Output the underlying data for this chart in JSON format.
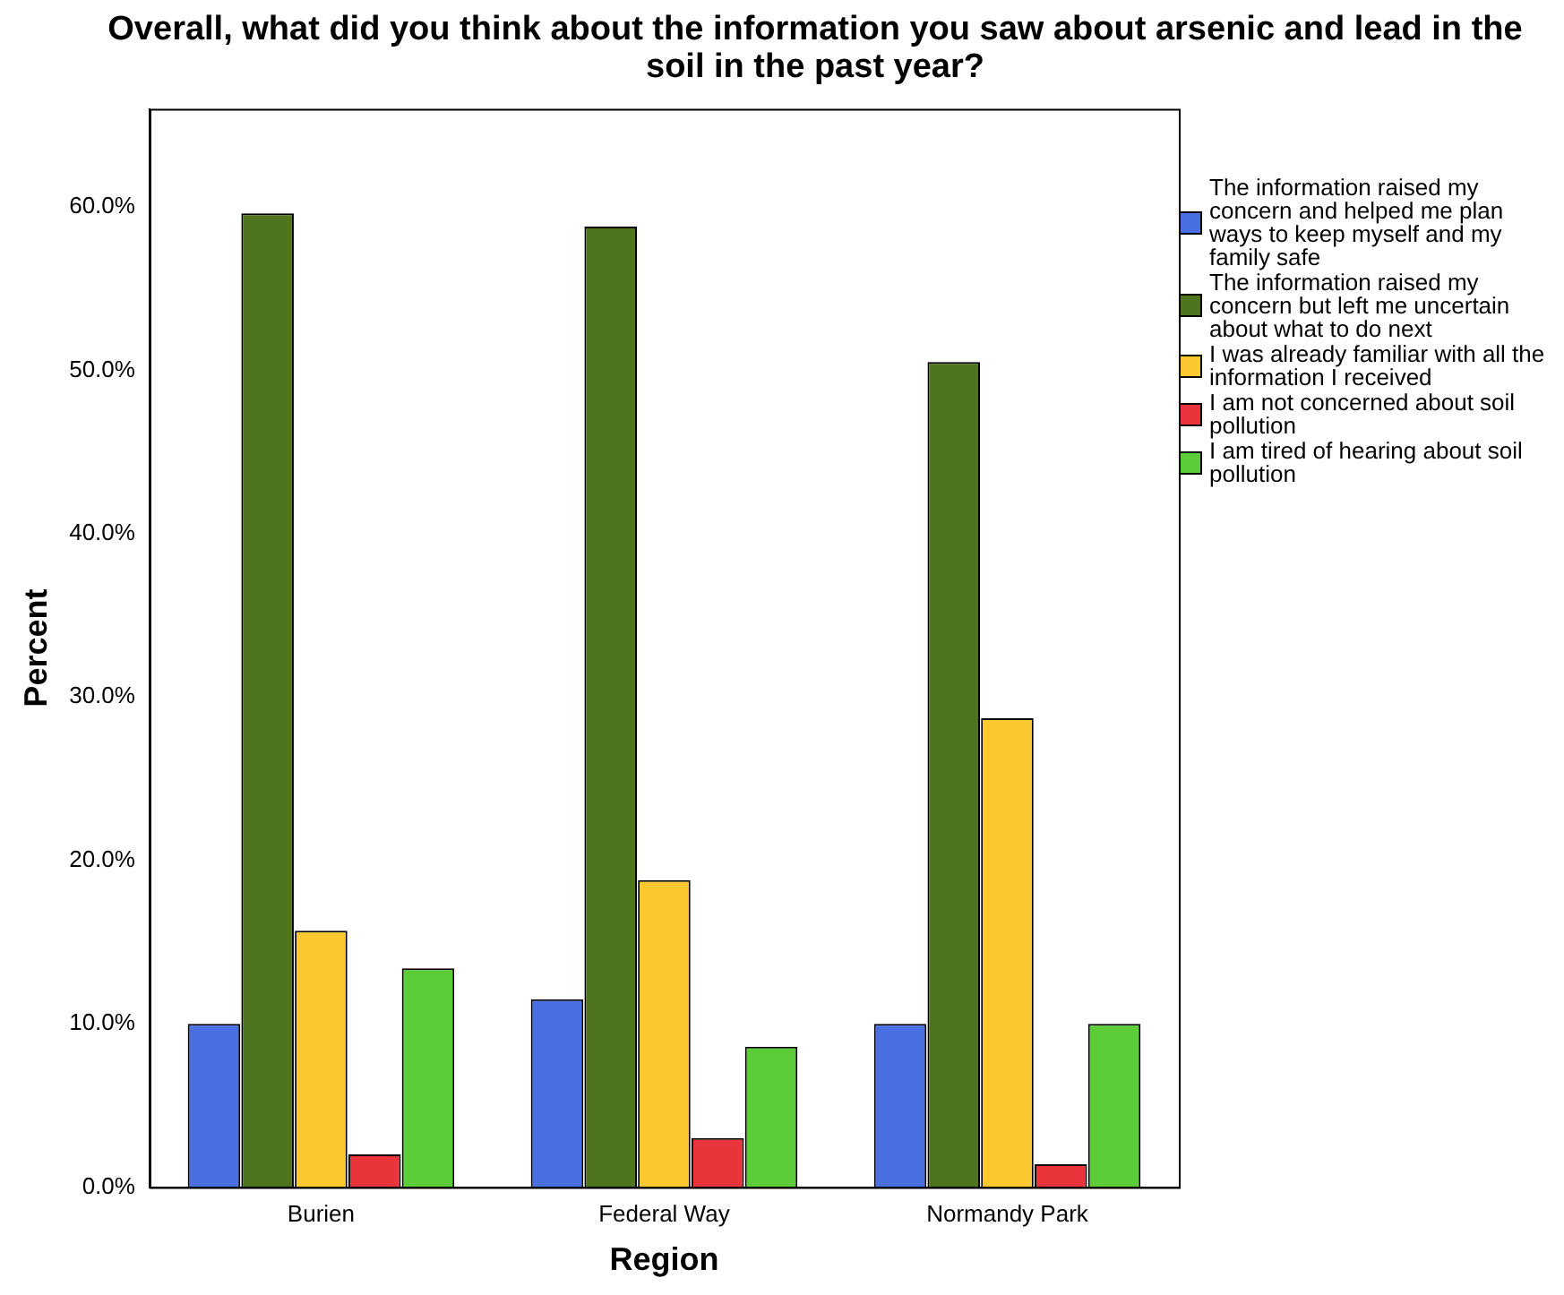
{
  "chart_data": {
    "type": "bar",
    "title": "Overall, what did you think about the information you saw about arsenic and lead in the soil in the past year?",
    "xlabel": "Region",
    "ylabel": "Percent",
    "categories": [
      "Burien",
      "Federal Way",
      "Normandy Park"
    ],
    "series": [
      {
        "name": "The information raised my concern and helped me plan ways to keep myself and my family safe",
        "color": "#4a6fe3",
        "values": [
          10.0,
          11.5,
          10.0
        ]
      },
      {
        "name": "The information raised my concern but left me uncertain about what to do next",
        "color": "#4f7420",
        "values": [
          59.6,
          58.8,
          50.5
        ]
      },
      {
        "name": "I was already familiar with all the information I received",
        "color": "#fbc92f",
        "values": [
          15.7,
          18.8,
          28.7
        ]
      },
      {
        "name": "I am not concerned about soil pollution",
        "color": "#e8343a",
        "values": [
          2.0,
          3.0,
          1.4
        ]
      },
      {
        "name": "I am tired of hearing about soil pollution",
        "color": "#5ccc39",
        "values": [
          13.4,
          8.6,
          10.0
        ]
      }
    ],
    "ylim": [
      0,
      66
    ],
    "yticks": [
      {
        "value": 0,
        "label": "0.0%"
      },
      {
        "value": 10,
        "label": "10.0%"
      },
      {
        "value": 20,
        "label": "20.0%"
      },
      {
        "value": 30,
        "label": "30.0%"
      },
      {
        "value": 40,
        "label": "40.0%"
      },
      {
        "value": 50,
        "label": "50.0%"
      },
      {
        "value": 60,
        "label": "60.0%"
      }
    ],
    "grid": false,
    "legend": "right"
  }
}
